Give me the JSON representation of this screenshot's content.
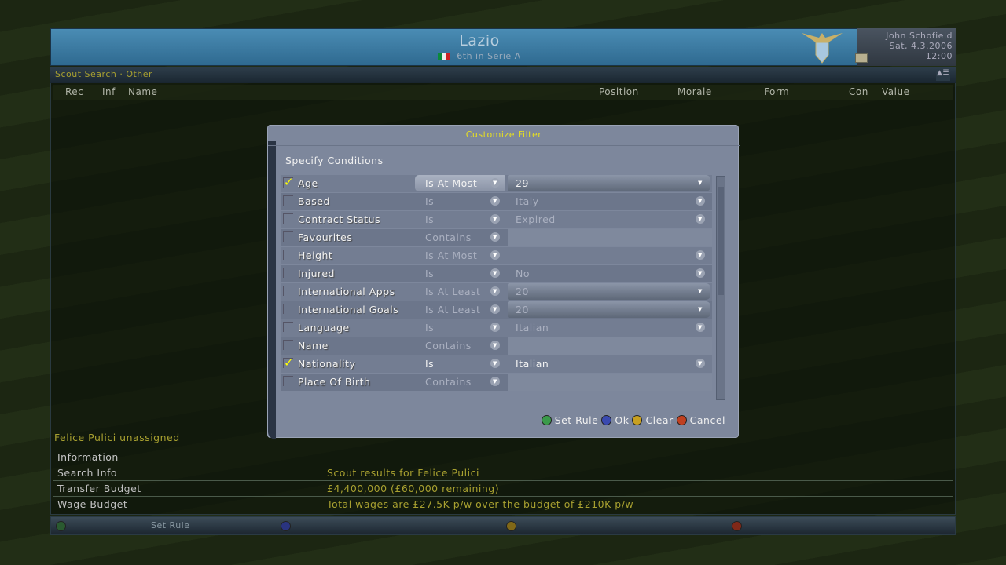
{
  "header": {
    "club": "Lazio",
    "position": "6th in Serie A",
    "manager": "John Schofield",
    "date": "Sat, 4.3.2006",
    "time": "12:00"
  },
  "panel": {
    "title": "Scout Search · Other",
    "columns": [
      "Rec",
      "Inf",
      "Name",
      "Position",
      "Morale",
      "Form",
      "Con",
      "Value"
    ]
  },
  "dialog": {
    "title": "Customize Filter",
    "subtitle": "Specify Conditions",
    "rows": [
      {
        "checked": true,
        "label": "Age",
        "op": "Is At Most",
        "value": "29",
        "style": "button"
      },
      {
        "checked": false,
        "label": "Based",
        "op": "Is",
        "value": "Italy",
        "style": "text"
      },
      {
        "checked": false,
        "label": "Contract Status",
        "op": "Is",
        "value": "Expired",
        "style": "text"
      },
      {
        "checked": false,
        "label": "Favourites",
        "op": "Contains",
        "value": "",
        "style": "field"
      },
      {
        "checked": false,
        "label": "Height",
        "op": "Is At Most",
        "value": "",
        "style": "text"
      },
      {
        "checked": false,
        "label": "Injured",
        "op": "Is",
        "value": "No",
        "style": "text"
      },
      {
        "checked": false,
        "label": "International Apps",
        "op": "Is At Least",
        "value": "20",
        "style": "button"
      },
      {
        "checked": false,
        "label": "International Goals",
        "op": "Is At Least",
        "value": "20",
        "style": "button"
      },
      {
        "checked": false,
        "label": "Language",
        "op": "Is",
        "value": "Italian",
        "style": "text"
      },
      {
        "checked": false,
        "label": "Name",
        "op": "Contains",
        "value": "",
        "style": "field"
      },
      {
        "checked": true,
        "label": "Nationality",
        "op": "Is",
        "value": "Italian",
        "style": "text"
      },
      {
        "checked": false,
        "label": "Place Of Birth",
        "op": "Contains",
        "value": "",
        "style": "field"
      }
    ],
    "buttons": {
      "a": "Set Rule",
      "x": "Ok",
      "y": "Clear",
      "b": "Cancel"
    }
  },
  "status": "Felice Pulici unassigned",
  "info": {
    "title": "Information",
    "rows": [
      {
        "key": "Search Info",
        "value": "Scout results for Felice Pulici"
      },
      {
        "key": "Transfer Budget",
        "value": "£4,400,000 (£60,000 remaining)"
      },
      {
        "key": "Wage Budget",
        "value": "Total wages are £27.5K p/w over the budget of £210K p/w"
      }
    ]
  },
  "footer": {
    "a_label": "Set Rule"
  },
  "colors": {
    "accent": "#a8a030",
    "a": "#3a9a4a",
    "x": "#3a4ab0",
    "y": "#c8a020",
    "b": "#c04020"
  }
}
